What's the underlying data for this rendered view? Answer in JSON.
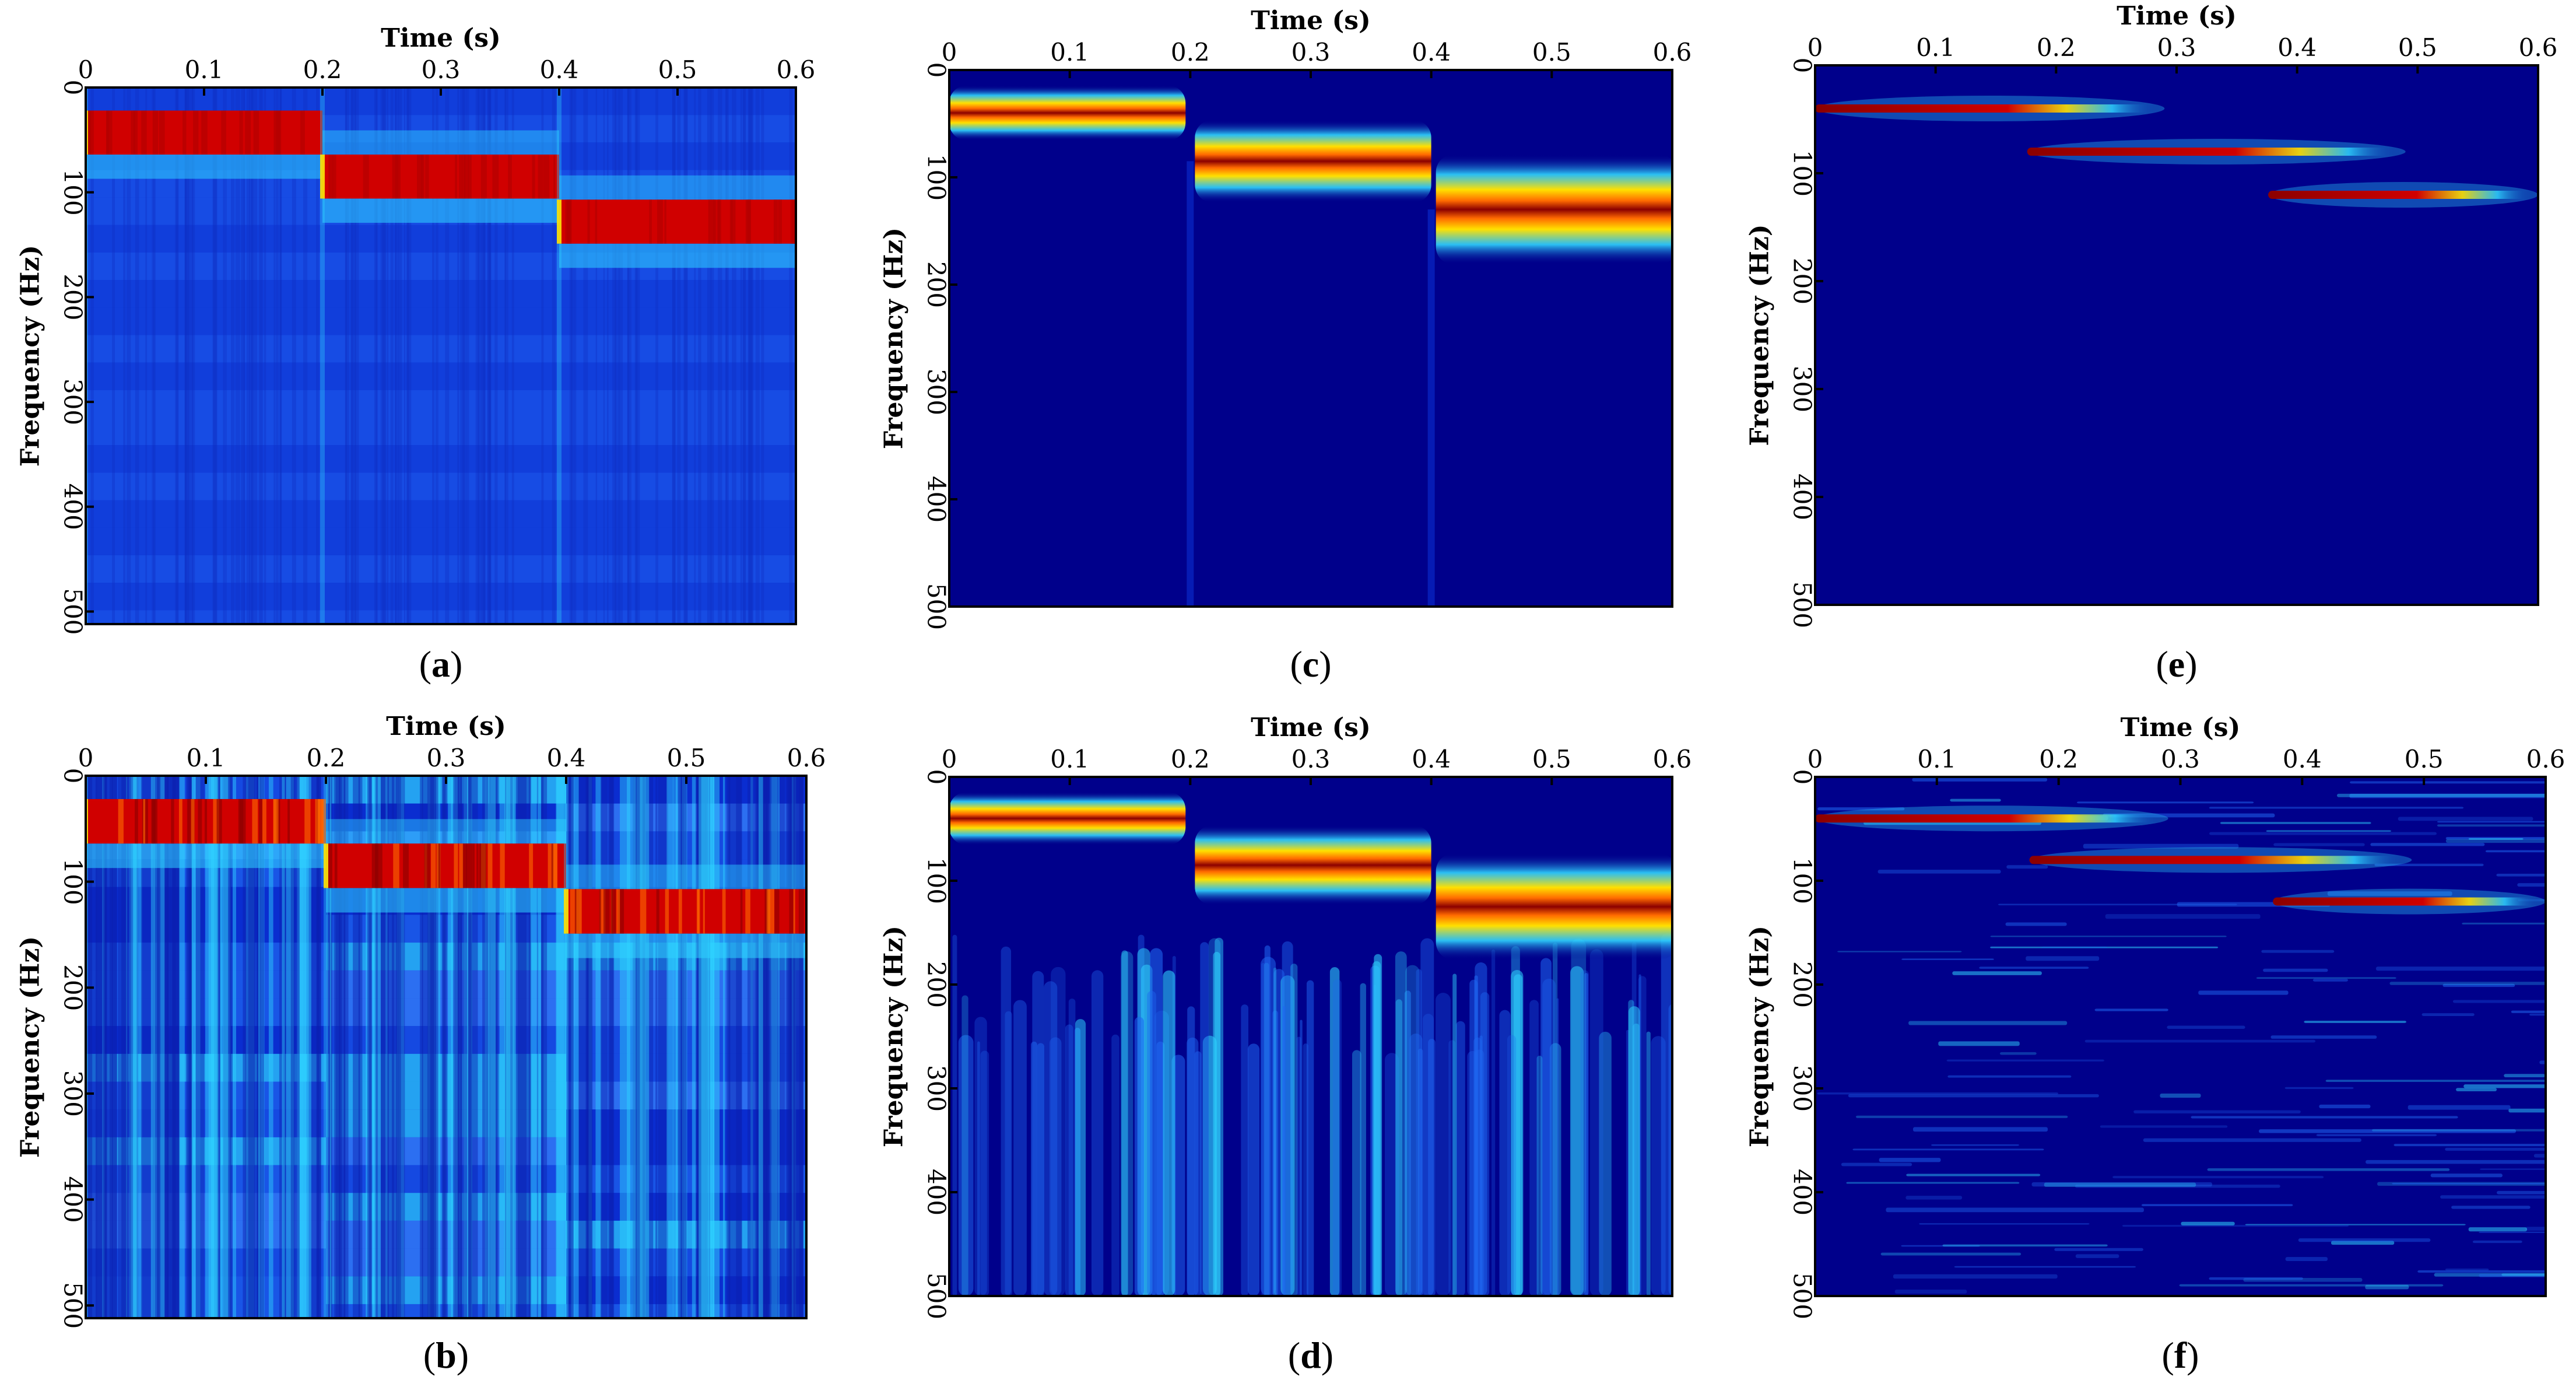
{
  "figure_title": "",
  "colors": {
    "deep": "#00008b",
    "blue": "#0a2dd0",
    "mid": "#1f66f0",
    "cyan": "#2fd4ff",
    "yellow": "#ffe000",
    "orange": "#ff6a00",
    "red": "#d00000",
    "darkred": "#8b0000"
  },
  "chart_data": [
    {
      "type": "heatmap",
      "panel_label": "a",
      "title": "",
      "xlabel": "Time (s)",
      "ylabel": "Frequency (Hz)",
      "xlim": [
        0,
        0.6
      ],
      "ylim": [
        0,
        512
      ],
      "xticks": [
        "0",
        "0.1",
        "0.2",
        "0.3",
        "0.4",
        "0.5",
        "0.6"
      ],
      "yticks": [
        "0",
        "100",
        "200",
        "300",
        "400",
        "500"
      ],
      "style": "stft",
      "segments": [
        {
          "t_start": 0.0,
          "t_end": 0.2,
          "f_center": 43,
          "f_halfwidth": 21
        },
        {
          "t_start": 0.2,
          "t_end": 0.4,
          "f_center": 85,
          "f_halfwidth": 21
        },
        {
          "t_start": 0.4,
          "t_end": 0.6,
          "f_center": 128,
          "f_halfwidth": 21
        }
      ]
    },
    {
      "type": "heatmap",
      "panel_label": "b",
      "title": "",
      "xlabel": "Time (s)",
      "ylabel": "Frequency (Hz)",
      "xlim": [
        0,
        0.6
      ],
      "ylim": [
        0,
        512
      ],
      "xticks": [
        "0",
        "0.1",
        "0.2",
        "0.3",
        "0.4",
        "0.5",
        "0.6"
      ],
      "yticks": [
        "0",
        "100",
        "200",
        "300",
        "400",
        "500"
      ],
      "style": "stft-noisy",
      "segments": [
        {
          "t_start": 0.0,
          "t_end": 0.2,
          "f_center": 43,
          "f_halfwidth": 21
        },
        {
          "t_start": 0.2,
          "t_end": 0.4,
          "f_center": 85,
          "f_halfwidth": 21
        },
        {
          "t_start": 0.4,
          "t_end": 0.6,
          "f_center": 128,
          "f_halfwidth": 21
        }
      ]
    },
    {
      "type": "heatmap",
      "panel_label": "c",
      "title": "",
      "xlabel": "Time (s)",
      "ylabel": "Frequency (Hz)",
      "xlim": [
        0,
        0.6
      ],
      "ylim": [
        0,
        500
      ],
      "xticks": [
        "0",
        "0.1",
        "0.2",
        "0.3",
        "0.4",
        "0.5",
        "0.6"
      ],
      "yticks": [
        "0",
        "100",
        "200",
        "300",
        "400",
        "500"
      ],
      "style": "cwt",
      "segments": [
        {
          "t_start": 0.0,
          "t_end": 0.2,
          "f_center": 40,
          "f_halfwidth": 8
        },
        {
          "t_start": 0.2,
          "t_end": 0.4,
          "f_center": 85,
          "f_halfwidth": 12
        },
        {
          "t_start": 0.4,
          "t_end": 0.6,
          "f_center": 130,
          "f_halfwidth": 16
        }
      ]
    },
    {
      "type": "heatmap",
      "panel_label": "d",
      "title": "",
      "xlabel": "Time (s)",
      "ylabel": "Frequency (Hz)",
      "xlim": [
        0,
        0.6
      ],
      "ylim": [
        0,
        500
      ],
      "xticks": [
        "0",
        "0.1",
        "0.2",
        "0.3",
        "0.4",
        "0.5",
        "0.6"
      ],
      "yticks": [
        "0",
        "100",
        "200",
        "300",
        "400",
        "500"
      ],
      "style": "cwt-noisy",
      "segments": [
        {
          "t_start": 0.0,
          "t_end": 0.2,
          "f_center": 40,
          "f_halfwidth": 8
        },
        {
          "t_start": 0.2,
          "t_end": 0.4,
          "f_center": 85,
          "f_halfwidth": 12
        },
        {
          "t_start": 0.4,
          "t_end": 0.6,
          "f_center": 125,
          "f_halfwidth": 16
        }
      ]
    },
    {
      "type": "heatmap",
      "panel_label": "e",
      "title": "",
      "xlabel": "Time (s)",
      "ylabel": "Frequency (Hz)",
      "xlim": [
        0,
        0.6
      ],
      "ylim": [
        0,
        500
      ],
      "xticks": [
        "0",
        "0.1",
        "0.2",
        "0.3",
        "0.4",
        "0.5",
        "0.6"
      ],
      "yticks": [
        "0",
        "100",
        "200",
        "300",
        "400",
        "500"
      ],
      "style": "sparse",
      "segments": [
        {
          "t_start": 0.0,
          "t_end": 0.2,
          "f_center": 40,
          "f_halfwidth": 4
        },
        {
          "t_start": 0.2,
          "t_end": 0.4,
          "f_center": 80,
          "f_halfwidth": 4
        },
        {
          "t_start": 0.4,
          "t_end": 0.6,
          "f_center": 120,
          "f_halfwidth": 4
        }
      ]
    },
    {
      "type": "heatmap",
      "panel_label": "f",
      "title": "",
      "xlabel": "Time (s)",
      "ylabel": "Frequency (Hz)",
      "xlim": [
        0,
        0.6
      ],
      "ylim": [
        0,
        500
      ],
      "xticks": [
        "0",
        "0.1",
        "0.2",
        "0.3",
        "0.4",
        "0.5",
        "0.6"
      ],
      "yticks": [
        "0",
        "100",
        "200",
        "300",
        "400",
        "500"
      ],
      "style": "sparse-noisy",
      "segments": [
        {
          "t_start": 0.0,
          "t_end": 0.2,
          "f_center": 40,
          "f_halfwidth": 4
        },
        {
          "t_start": 0.2,
          "t_end": 0.4,
          "f_center": 80,
          "f_halfwidth": 4
        },
        {
          "t_start": 0.4,
          "t_end": 0.6,
          "f_center": 120,
          "f_halfwidth": 4
        }
      ]
    }
  ]
}
